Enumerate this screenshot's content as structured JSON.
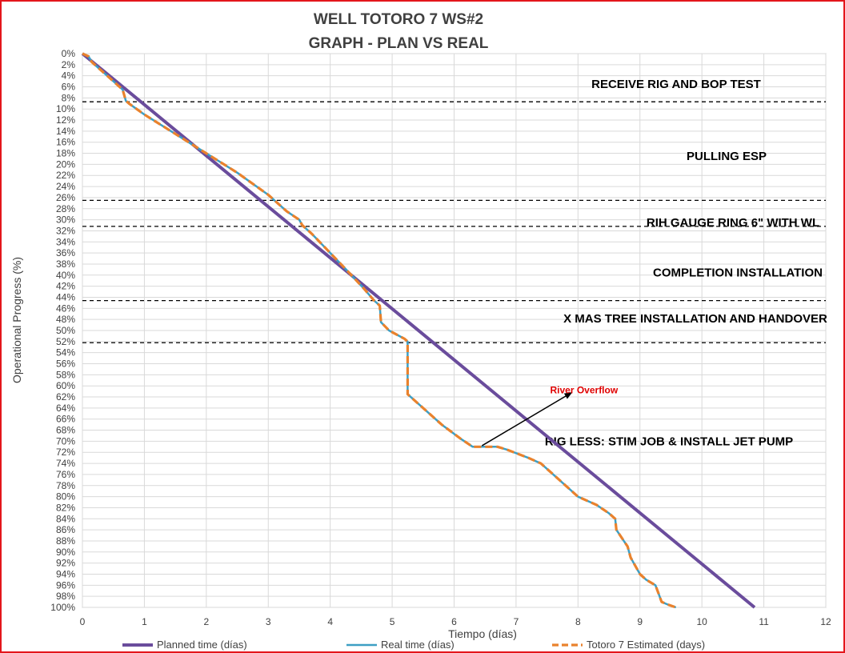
{
  "chart_data": {
    "type": "line",
    "title_line1": "WELL TOTORO 7 WS#2",
    "title_line2": "GRAPH  - PLAN VS REAL",
    "xlabel": "Tiempo (días)",
    "ylabel": "Operational Progress (%)",
    "xlim": [
      0,
      12
    ],
    "ylim": [
      0,
      100
    ],
    "y_inverted": true,
    "x_ticks": [
      0,
      1,
      2,
      3,
      4,
      5,
      6,
      7,
      8,
      9,
      10,
      11,
      12
    ],
    "y_ticks": [
      0,
      2,
      4,
      6,
      8,
      10,
      12,
      14,
      16,
      18,
      20,
      22,
      24,
      26,
      28,
      30,
      32,
      34,
      36,
      38,
      40,
      42,
      44,
      46,
      48,
      50,
      52,
      54,
      56,
      58,
      60,
      62,
      64,
      66,
      68,
      70,
      72,
      74,
      76,
      78,
      80,
      82,
      84,
      86,
      88,
      90,
      92,
      94,
      96,
      98,
      100
    ],
    "y_tick_suffix": "%",
    "grid": true,
    "series": [
      {
        "name": "Planned time (días)",
        "color": "#6a4c9c",
        "style": "solid",
        "points": [
          [
            0,
            0
          ],
          [
            10.85,
            100
          ]
        ]
      },
      {
        "name": "Real time (días)",
        "color": "#3d9fc4",
        "style": "solid",
        "points": [
          [
            0,
            0
          ],
          [
            0.1,
            0.5
          ],
          [
            0.15,
            1.5
          ],
          [
            0.3,
            3
          ],
          [
            0.5,
            5
          ],
          [
            0.65,
            6.5
          ],
          [
            0.7,
            8.5
          ],
          [
            0.75,
            9
          ],
          [
            1,
            11
          ],
          [
            1.5,
            14.5
          ],
          [
            2,
            18
          ],
          [
            2.5,
            21.5
          ],
          [
            3,
            25.5
          ],
          [
            3.3,
            28.5
          ],
          [
            3.5,
            30
          ],
          [
            3.55,
            31
          ],
          [
            3.7,
            32.5
          ],
          [
            4,
            36
          ],
          [
            4.3,
            39.5
          ],
          [
            4.55,
            42.5
          ],
          [
            4.7,
            44.5
          ],
          [
            4.8,
            45.5
          ],
          [
            4.82,
            48.5
          ],
          [
            4.95,
            50
          ],
          [
            5.2,
            51.5
          ],
          [
            5.25,
            52
          ],
          [
            5.25,
            61.5
          ],
          [
            5.5,
            64
          ],
          [
            5.8,
            67
          ],
          [
            6.1,
            69.5
          ],
          [
            6.3,
            71
          ],
          [
            6.7,
            71
          ],
          [
            6.85,
            71.5
          ],
          [
            7.2,
            73
          ],
          [
            7.4,
            74
          ],
          [
            7.6,
            76
          ],
          [
            7.8,
            78
          ],
          [
            8,
            80
          ],
          [
            8.3,
            81.5
          ],
          [
            8.5,
            83
          ],
          [
            8.6,
            84
          ],
          [
            8.62,
            86
          ],
          [
            8.8,
            89
          ],
          [
            8.85,
            91
          ],
          [
            8.95,
            93
          ],
          [
            9,
            94
          ],
          [
            9.1,
            95
          ],
          [
            9.25,
            96
          ],
          [
            9.3,
            97.5
          ],
          [
            9.35,
            99
          ],
          [
            9.45,
            99.5
          ],
          [
            9.58,
            100
          ]
        ]
      },
      {
        "name": "Totoro 7 Estimated (days)",
        "color": "#e9822d",
        "style": "dashed",
        "points": [
          [
            0,
            0
          ],
          [
            0.1,
            0.5
          ],
          [
            0.15,
            1.5
          ],
          [
            0.3,
            3
          ],
          [
            0.5,
            5
          ],
          [
            0.65,
            6.5
          ],
          [
            0.7,
            8.5
          ],
          [
            0.75,
            9
          ],
          [
            1,
            11
          ],
          [
            1.5,
            14.5
          ],
          [
            2,
            18
          ],
          [
            2.5,
            21.5
          ],
          [
            3,
            25.5
          ],
          [
            3.3,
            28.5
          ],
          [
            3.5,
            30
          ],
          [
            3.55,
            31
          ],
          [
            3.7,
            32.5
          ],
          [
            4,
            36
          ],
          [
            4.3,
            39.5
          ],
          [
            4.55,
            42.5
          ],
          [
            4.7,
            44.5
          ],
          [
            4.8,
            45.5
          ],
          [
            4.82,
            48.5
          ],
          [
            4.95,
            50
          ],
          [
            5.2,
            51.5
          ],
          [
            5.25,
            52
          ],
          [
            5.25,
            61.5
          ],
          [
            5.5,
            64
          ],
          [
            5.8,
            67
          ],
          [
            6.1,
            69.5
          ],
          [
            6.3,
            71
          ],
          [
            6.7,
            71
          ],
          [
            6.85,
            71.5
          ],
          [
            7.2,
            73
          ],
          [
            7.4,
            74
          ],
          [
            7.6,
            76
          ],
          [
            7.8,
            78
          ],
          [
            8,
            80
          ],
          [
            8.3,
            81.5
          ],
          [
            8.5,
            83
          ],
          [
            8.6,
            84
          ],
          [
            8.62,
            86
          ],
          [
            8.8,
            89
          ],
          [
            8.85,
            91
          ],
          [
            8.95,
            93
          ],
          [
            9,
            94
          ],
          [
            9.1,
            95
          ],
          [
            9.25,
            96
          ],
          [
            9.3,
            97.5
          ],
          [
            9.35,
            99
          ],
          [
            9.45,
            99.5
          ],
          [
            9.58,
            100
          ]
        ]
      }
    ],
    "phase_boundaries": [
      8.7,
      26.5,
      31.2,
      44.6,
      52.2
    ],
    "phase_labels": [
      {
        "text": "RECEIVE RIG AND BOP TEST",
        "y": 5.5
      },
      {
        "text": "PULLING ESP",
        "y": 18.5
      },
      {
        "text": "RIH GAUGE RING 6\" WITH WL",
        "y": 30.5
      },
      {
        "text": "COMPLETION INSTALLATION",
        "y": 39.5
      },
      {
        "text": "X MAS TREE INSTALLATION AND HANDOVER",
        "y": 47.8
      },
      {
        "text": "RIG LESS: STIM JOB & INSTALL JET PUMP",
        "y": 70
      }
    ],
    "annotation": {
      "text": "River Overflow",
      "arrow_from": [
        6.45,
        70.8
      ],
      "arrow_to": [
        7.9,
        61.2
      ],
      "text_at": [
        7.55,
        60.8
      ]
    }
  }
}
